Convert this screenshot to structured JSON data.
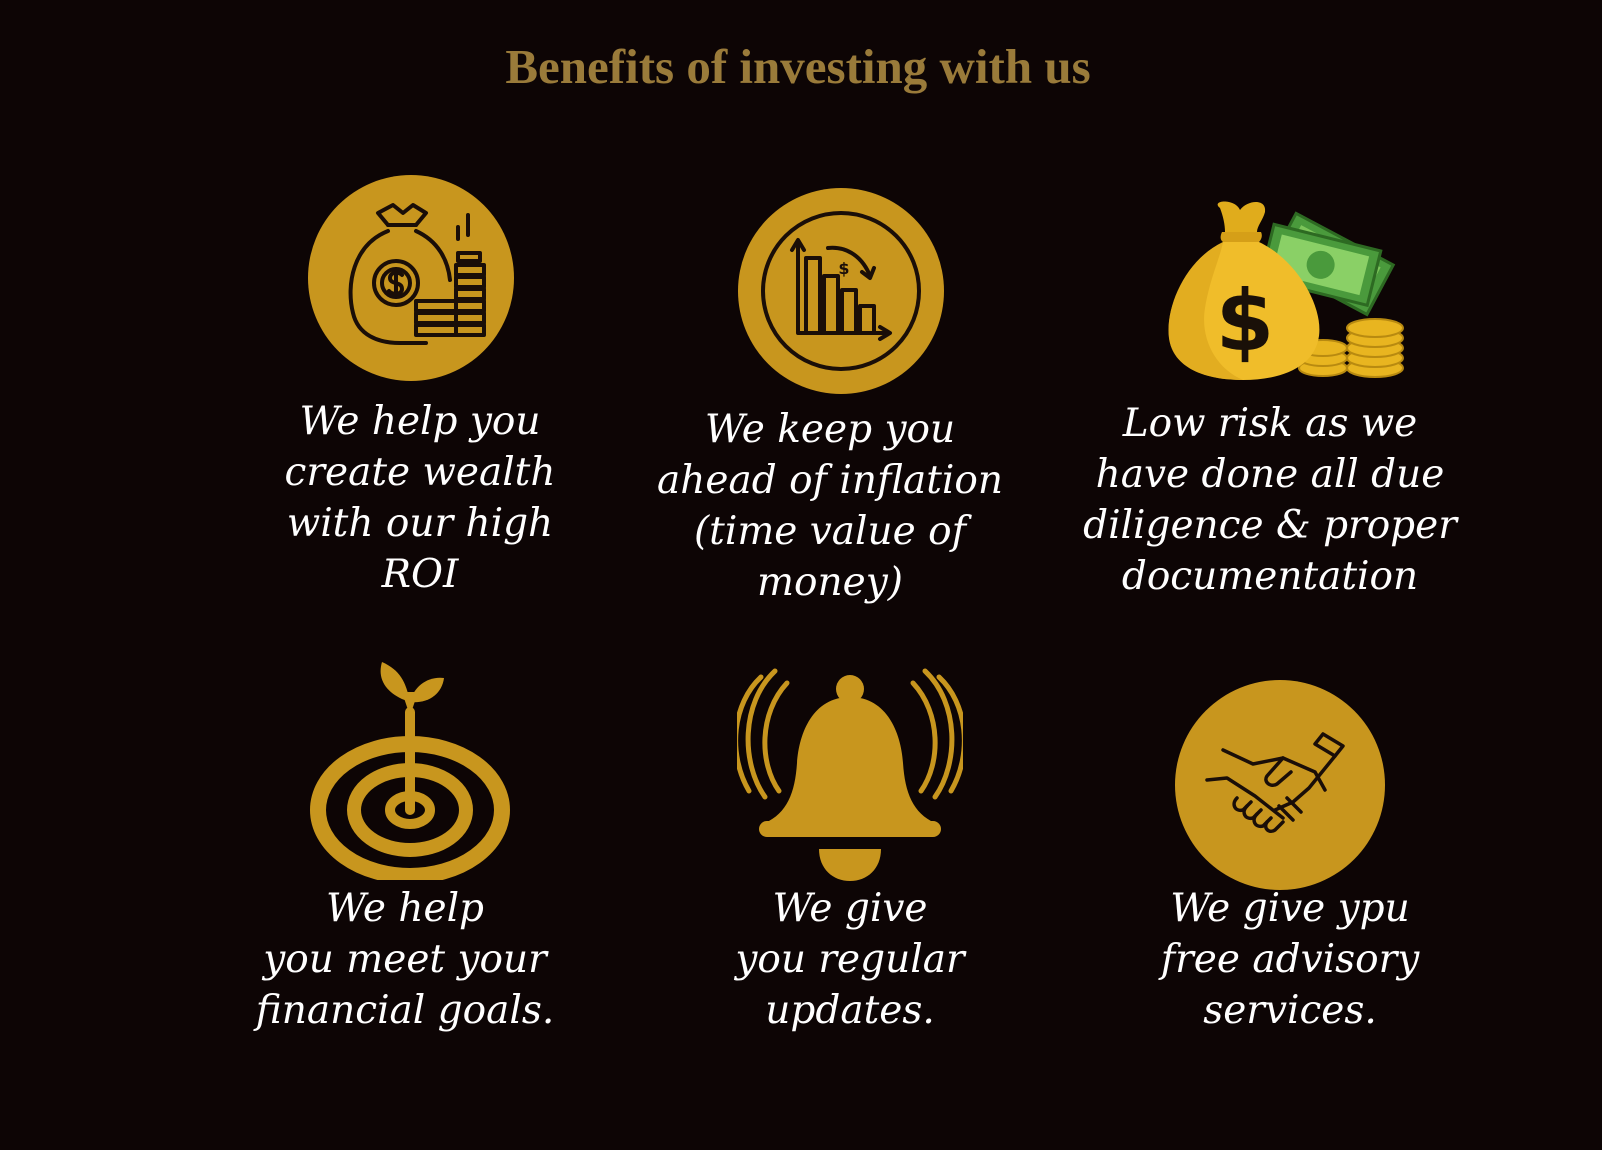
{
  "title": "Benefits of investing with us",
  "colors": {
    "background": "#0d0505",
    "gold": "#c8961e",
    "title": "#9a7b3a",
    "text": "#ffffff",
    "cash": "#5aa845"
  },
  "benefits": [
    {
      "icon": "money-bag-coins-icon",
      "lines": [
        "We help you",
        "create wealth",
        "with our high",
        "ROI"
      ]
    },
    {
      "icon": "declining-chart-icon",
      "lines": [
        "We keep you",
        "ahead of inflation",
        "(time value of",
        "money)"
      ]
    },
    {
      "icon": "money-bag-cash-icon",
      "lines": [
        "Low risk as we",
        "have done all due",
        "diligence & proper",
        "documentation"
      ]
    },
    {
      "icon": "target-dart-icon",
      "lines": [
        "We help",
        "you meet your",
        "financial goals."
      ]
    },
    {
      "icon": "bell-icon",
      "lines": [
        "We give",
        "you regular",
        "updates."
      ]
    },
    {
      "icon": "handshake-icon",
      "lines": [
        "We give ypu",
        "free advisory",
        "services."
      ]
    }
  ]
}
